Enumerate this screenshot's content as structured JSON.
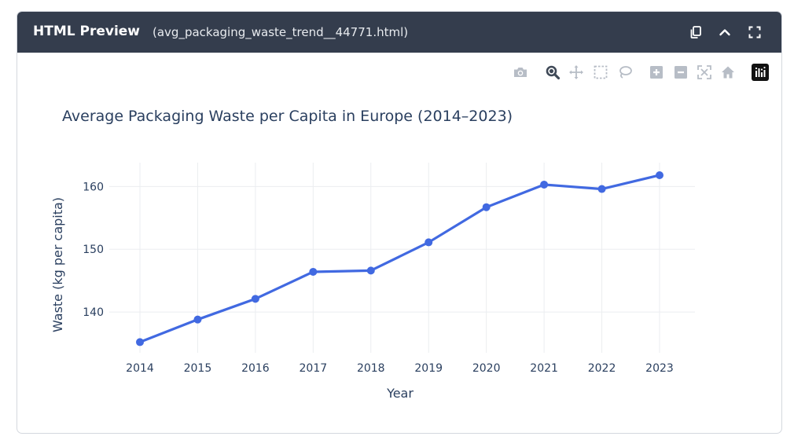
{
  "window": {
    "title": "HTML Preview",
    "filename": "(avg_packaging_waste_trend__44771.html)",
    "buttons": [
      "copy-icon",
      "chevron-up-icon",
      "fullscreen-icon"
    ]
  },
  "toolbar": {
    "icons": [
      "camera-icon",
      "zoom-icon",
      "pan-icon",
      "box-select-icon",
      "lasso-icon",
      "zoom-in-icon",
      "zoom-out-icon",
      "autoscale-icon",
      "reset-axes-icon",
      "plotly-logo-icon"
    ]
  },
  "colors": {
    "header_bg": "#343d4d",
    "line": "#4169e1",
    "grid": "#ebedf0",
    "text": "#2a3f5f"
  },
  "chart_data": {
    "type": "line",
    "title": "Average Packaging Waste per Capita in Europe (2014–2023)",
    "xlabel": "Year",
    "ylabel": "Waste (kg per capita)",
    "x": [
      2014,
      2015,
      2016,
      2017,
      2018,
      2019,
      2020,
      2021,
      2022,
      2023
    ],
    "y": [
      135.2,
      138.8,
      142.1,
      146.4,
      146.6,
      151.1,
      156.7,
      160.3,
      159.6,
      161.8
    ],
    "ylim": [
      133.5,
      163.8
    ],
    "yticks": [
      140,
      150,
      160
    ],
    "grid": true,
    "markers": true
  }
}
